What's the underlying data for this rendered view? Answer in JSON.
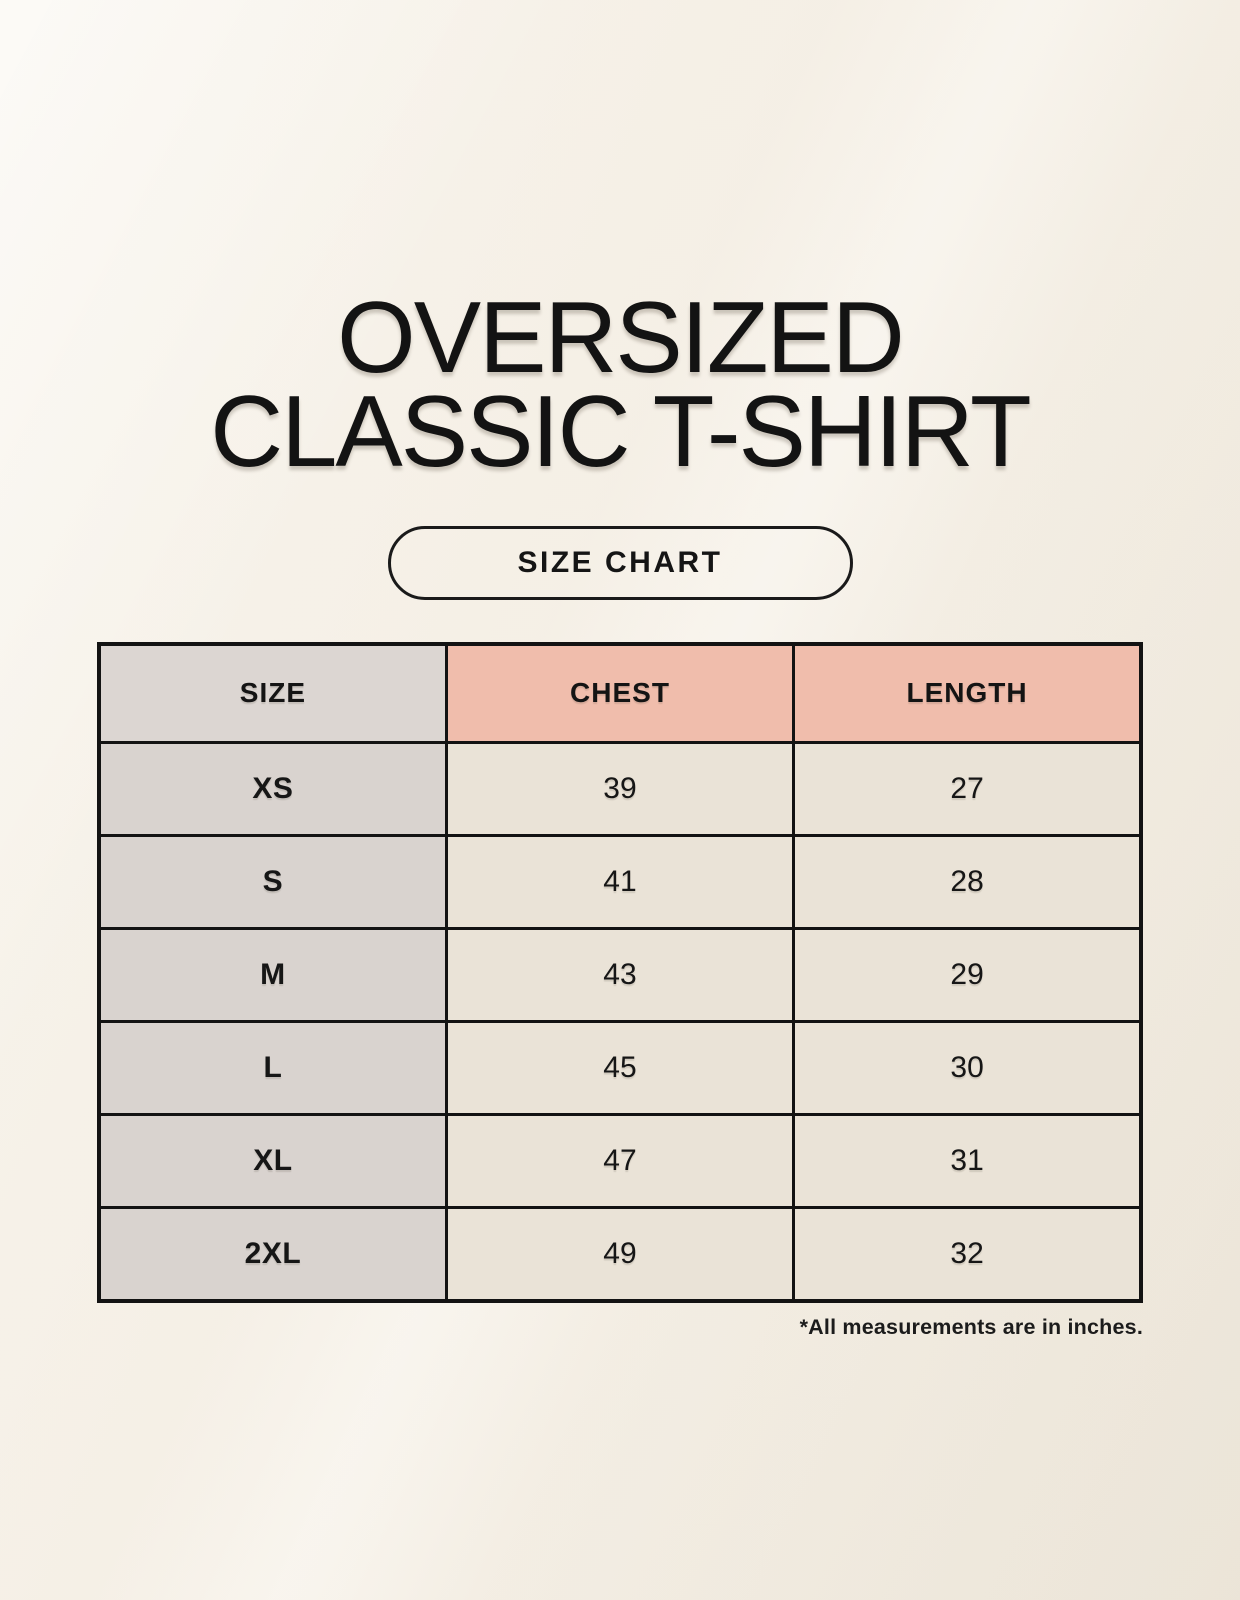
{
  "title": {
    "line1": "OVERSIZED",
    "line2": "CLASSIC T-SHIRT"
  },
  "button": {
    "label": "SIZE CHART"
  },
  "table": {
    "columns": [
      "SIZE",
      "CHEST",
      "LENGTH"
    ],
    "rows": [
      {
        "size": "XS",
        "chest": "39",
        "length": "27"
      },
      {
        "size": "S",
        "chest": "41",
        "length": "28"
      },
      {
        "size": "M",
        "chest": "43",
        "length": "29"
      },
      {
        "size": "L",
        "chest": "45",
        "length": "30"
      },
      {
        "size": "XL",
        "chest": "47",
        "length": "31"
      },
      {
        "size": "2XL",
        "chest": "49",
        "length": "32"
      }
    ]
  },
  "note": "*All measurements are in inches.",
  "colors": {
    "header_accent_pink": "#f0bdac",
    "size_column_gray": "#dcd6d2",
    "data_cell_cream": "#eae3d7",
    "background_cream": "#f7f2e9",
    "text_black": "#161616"
  }
}
